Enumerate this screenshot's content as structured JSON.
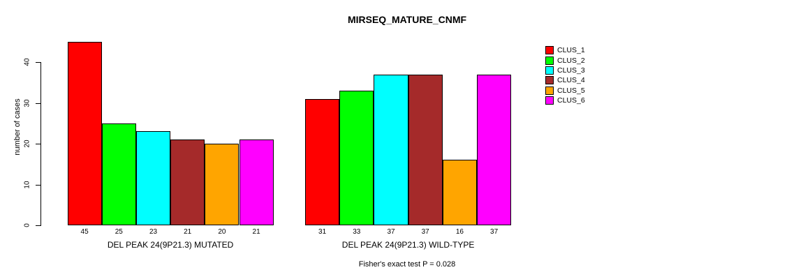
{
  "chart_data": {
    "type": "bar",
    "title": "MIRSEQ_MATURE_CNMF",
    "ylabel": "number of cases",
    "ylim": [
      0,
      45
    ],
    "yticks": [
      0,
      10,
      20,
      30,
      40
    ],
    "grid": false,
    "legend_position": "right",
    "background": "#FFFFFF",
    "axis_color": "#000000",
    "series": [
      {
        "name": "CLUS_1",
        "color": "#FF0000"
      },
      {
        "name": "CLUS_2",
        "color": "#00FF00"
      },
      {
        "name": "CLUS_3",
        "color": "#00FFFF"
      },
      {
        "name": "CLUS_4",
        "color": "#A52A2A"
      },
      {
        "name": "CLUS_5",
        "color": "#FFA500"
      },
      {
        "name": "CLUS_6",
        "color": "#FF00FF"
      }
    ],
    "groups": [
      {
        "label": "DEL PEAK 24(9P21.3) MUTATED",
        "values": [
          45,
          25,
          23,
          21,
          20,
          21
        ]
      },
      {
        "label": "DEL PEAK 24(9P21.3) WILD-TYPE",
        "values": [
          31,
          33,
          37,
          37,
          16,
          37
        ]
      }
    ],
    "bar_value_labels_shown": true,
    "annotation": "Fisher's exact test P = 0.028"
  }
}
